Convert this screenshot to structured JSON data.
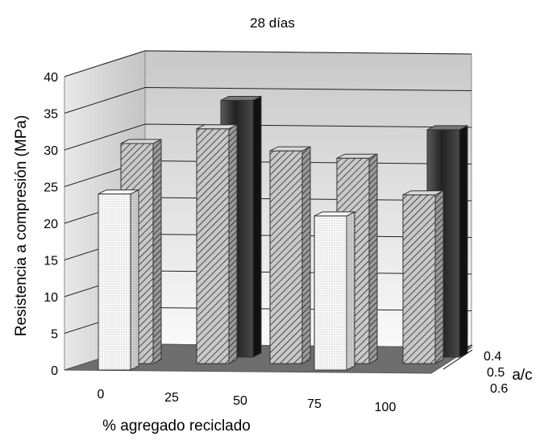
{
  "chart_data": {
    "type": "bar",
    "title": "28 días",
    "xlabel": "% agregado reciclado",
    "ylabel": "Resistencia a compresión (MPa)",
    "zlabel": "a/c",
    "categories": [
      "0",
      "25",
      "50",
      "75",
      "100"
    ],
    "y_ticks": [
      "0",
      "5",
      "10",
      "15",
      "20",
      "25",
      "30",
      "35",
      "40"
    ],
    "ylim": [
      0,
      40
    ],
    "grid": true,
    "series": [
      {
        "name": "0.4",
        "fill": "dark-gradient",
        "values": [
          null,
          35,
          null,
          null,
          31
        ]
      },
      {
        "name": "0.5",
        "fill": "diagonal-hatch",
        "values": [
          30,
          32,
          29,
          28,
          23
        ]
      },
      {
        "name": "0.6",
        "fill": "dotted",
        "values": [
          24,
          null,
          null,
          21,
          null
        ]
      }
    ]
  },
  "colors": {
    "floor": "#6e6e6e",
    "back_wall_top": "#c8c8c8",
    "back_wall_bottom": "#fafafa",
    "side_wall": "#d8d8d8",
    "dark_bar": "#2d2d2d",
    "hatch_bar": "#b8b8b8",
    "dotted_bar": "#f0f0f0"
  }
}
